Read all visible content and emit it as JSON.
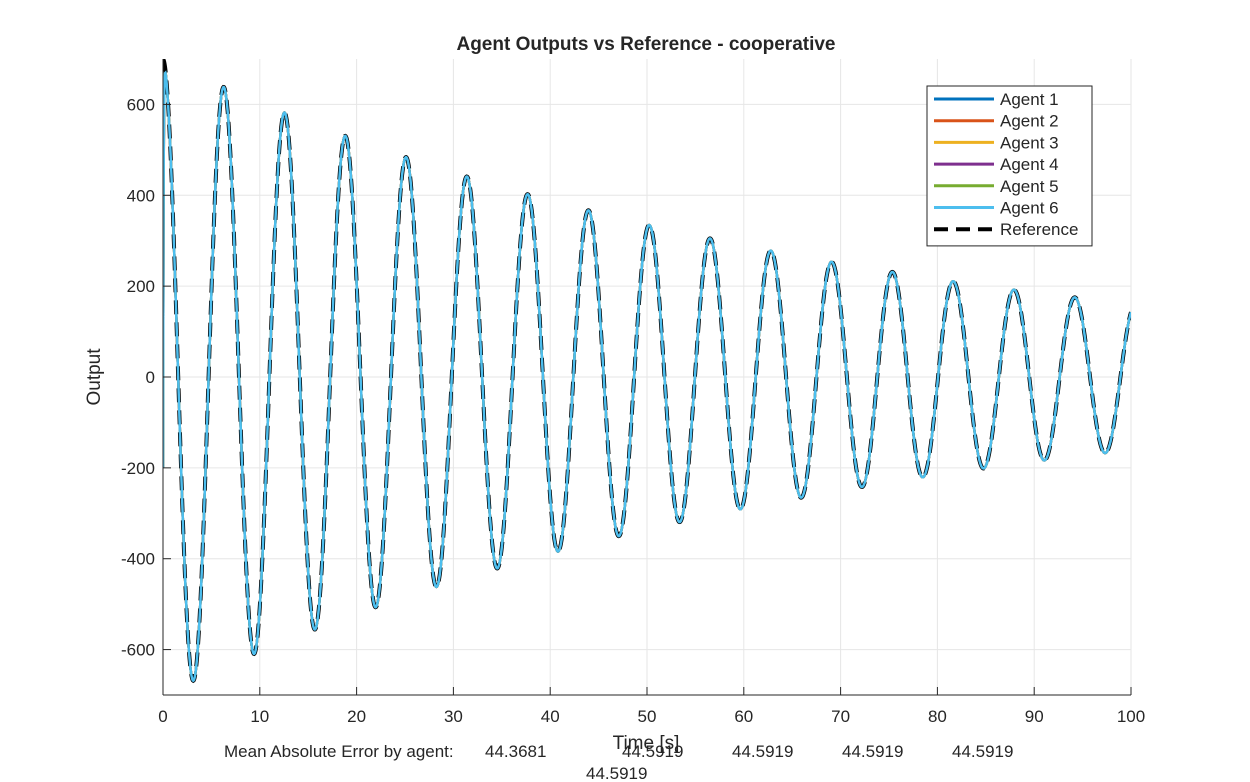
{
  "chart_data": {
    "type": "line",
    "title": "Agent Outputs vs Reference - cooperative",
    "xlabel": "Time [s]",
    "ylabel": "Output",
    "xlim": [
      0,
      100
    ],
    "ylim": [
      -700,
      700
    ],
    "xticks": [
      0,
      10,
      20,
      30,
      40,
      50,
      60,
      70,
      80,
      90,
      100
    ],
    "yticks": [
      -600,
      -400,
      -200,
      0,
      200,
      400,
      600
    ],
    "grid": true,
    "legend_position": "top-right",
    "model": {
      "amplitude": 700,
      "decay_rate": 0.0147,
      "period": 6.28,
      "agent_start_value": -200
    },
    "series": [
      {
        "name": "Agent 1",
        "color": "#0072BD",
        "style": "solid"
      },
      {
        "name": "Agent 2",
        "color": "#D95319",
        "style": "solid"
      },
      {
        "name": "Agent 3",
        "color": "#EDB120",
        "style": "solid"
      },
      {
        "name": "Agent 4",
        "color": "#7E2F8E",
        "style": "solid"
      },
      {
        "name": "Agent 5",
        "color": "#77AC30",
        "style": "solid"
      },
      {
        "name": "Agent 6",
        "color": "#4DBEEE",
        "style": "solid"
      },
      {
        "name": "Reference",
        "color": "#000000",
        "style": "dashed"
      }
    ],
    "annotation": {
      "prefix": "Mean Absolute Error by agent:",
      "values": [
        "44.3681",
        "44.5919",
        "44.5919",
        "44.5919",
        "44.5919",
        "44.5919"
      ]
    }
  }
}
